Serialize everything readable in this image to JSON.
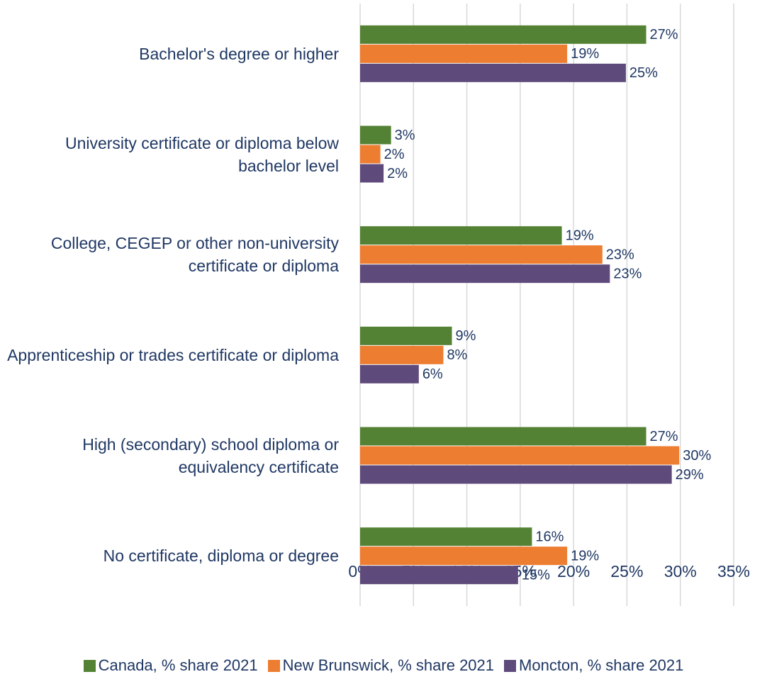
{
  "chart_data": {
    "type": "hbar",
    "categories": [
      "Bachelor's degree or higher",
      "University certificate or diploma below bachelor level",
      "College, CEGEP or other non-university certificate or diploma",
      "Apprenticeship or trades certificate or diploma",
      "High (secondary) school diploma or equivalency certificate",
      "No certificate, diploma or degree"
    ],
    "series": [
      {
        "name": "Canada, % share 2021",
        "color": "#548235",
        "values": [
          26.8,
          2.9,
          18.9,
          8.6,
          26.8,
          16.1
        ],
        "value_labels": [
          "27%",
          "3%",
          "19%",
          "9%",
          "27%",
          "16%"
        ]
      },
      {
        "name": "New Brunswick, % share 2021",
        "color": "#ed7d31",
        "values": [
          19.4,
          1.9,
          22.7,
          7.8,
          29.9,
          19.4
        ],
        "value_labels": [
          "19%",
          "2%",
          "23%",
          "8%",
          "30%",
          "19%"
        ]
      },
      {
        "name": "Moncton, % share 2021",
        "color": "#5f4b7b",
        "values": [
          24.9,
          2.2,
          23.4,
          5.5,
          29.2,
          14.8
        ],
        "value_labels": [
          "25%",
          "2%",
          "23%",
          "6%",
          "29%",
          "15%"
        ]
      }
    ],
    "xlim": [
      0,
      35
    ],
    "xticks": [
      {
        "value": 0,
        "label": "0%"
      },
      {
        "value": 5,
        "label": "5%"
      },
      {
        "value": 10,
        "label": "10%"
      },
      {
        "value": 15,
        "label": "15%"
      },
      {
        "value": 20,
        "label": "20%"
      },
      {
        "value": 25,
        "label": "25%"
      },
      {
        "value": 30,
        "label": "30%"
      },
      {
        "value": 35,
        "label": "35%"
      }
    ],
    "grid": true,
    "legend": "bottom"
  }
}
